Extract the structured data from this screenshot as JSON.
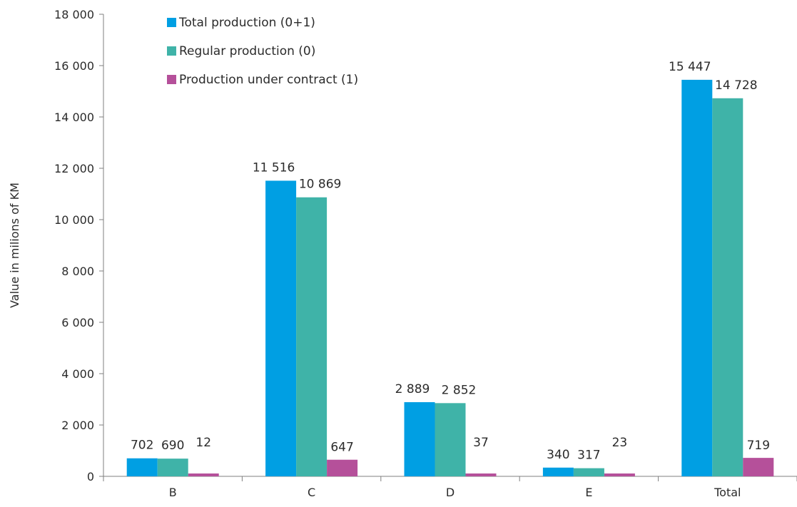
{
  "chart_data": {
    "type": "bar",
    "title": "",
    "xlabel": "",
    "ylabel": "Value in milions of KM",
    "ylim": [
      0,
      18000
    ],
    "yticks": [
      0,
      2000,
      4000,
      6000,
      8000,
      10000,
      12000,
      14000,
      16000,
      18000
    ],
    "ytick_labels": [
      "0",
      "2 000",
      "4 000",
      "6 000",
      "8 000",
      "10 000",
      "12 000",
      "14 000",
      "16 000",
      "18 000"
    ],
    "categories": [
      "B",
      "C",
      "D",
      "E",
      "Total"
    ],
    "series": [
      {
        "name": "Total production (0+1)",
        "color": "#009FE3",
        "values": [
          702,
          11516,
          2889,
          340,
          15447
        ],
        "labels": [
          "702",
          "11 516",
          "2 889",
          "340",
          "15 447"
        ]
      },
      {
        "name": "Regular production (0)",
        "color": "#3FB3A8",
        "values": [
          690,
          10869,
          2852,
          317,
          14728
        ],
        "labels": [
          "690",
          "10 869",
          "2 852",
          "317",
          "14 728"
        ]
      },
      {
        "name": "Production under contract (1)",
        "color": "#B5509A",
        "values": [
          12,
          647,
          37,
          23,
          719
        ],
        "labels": [
          "12",
          "647",
          "37",
          "23",
          "719"
        ]
      }
    ],
    "grid": false,
    "legend_position": "top-left"
  }
}
